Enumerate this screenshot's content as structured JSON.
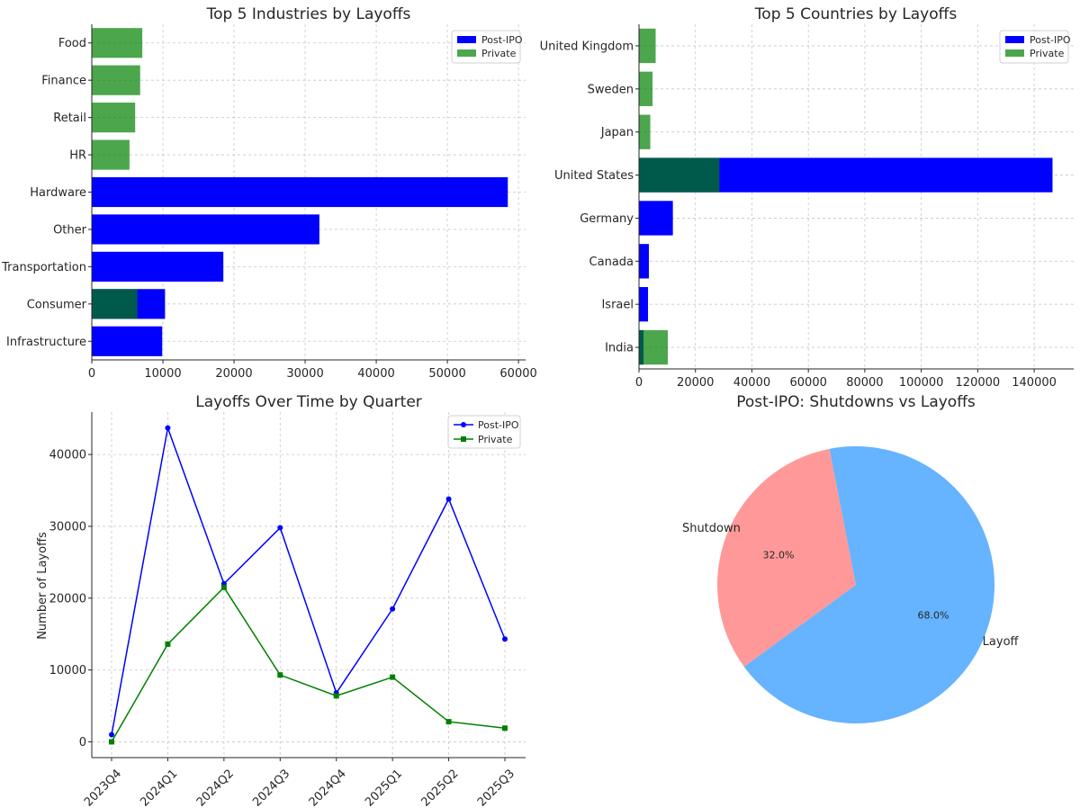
{
  "colors": {
    "post_ipo": "#0000ff",
    "private": "#008000",
    "private_bar_alpha": 0.7,
    "shutdown": "#ff9999",
    "layoff": "#66b3ff"
  },
  "chart_data": [
    {
      "id": "industries",
      "type": "bar",
      "orientation": "horizontal",
      "overlay": true,
      "title": "Top 5 Industries by Layoffs",
      "categories": [
        "Infrastructure",
        "Consumer",
        "Transportation",
        "Other",
        "Hardware",
        "HR",
        "Retail",
        "Finance",
        "Food"
      ],
      "series": [
        {
          "name": "Post-IPO",
          "values": [
            9900,
            10300,
            18500,
            32000,
            58500,
            0,
            0,
            0,
            0
          ]
        },
        {
          "name": "Private",
          "values": [
            0,
            6400,
            0,
            0,
            0,
            5300,
            6100,
            6800,
            7100
          ]
        }
      ],
      "xlim": [
        0,
        61000
      ],
      "xticks": [
        0,
        10000,
        20000,
        30000,
        40000,
        50000,
        60000
      ],
      "legend": "top-right",
      "grid": true
    },
    {
      "id": "countries",
      "type": "bar",
      "orientation": "horizontal",
      "overlay": true,
      "title": "Top 5 Countries by Layoffs",
      "categories": [
        "India",
        "Israel",
        "Canada",
        "Germany",
        "United States",
        "Japan",
        "Sweden",
        "United Kingdom"
      ],
      "series": [
        {
          "name": "Post-IPO",
          "values": [
            1600,
            3200,
            3500,
            12000,
            146500,
            0,
            0,
            0
          ]
        },
        {
          "name": "Private",
          "values": [
            10200,
            0,
            0,
            0,
            28500,
            4000,
            4800,
            5900
          ]
        }
      ],
      "xlim": [
        0,
        154000
      ],
      "xticks": [
        0,
        20000,
        40000,
        60000,
        80000,
        100000,
        120000,
        140000
      ],
      "legend": "top-right",
      "grid": true
    },
    {
      "id": "quarters",
      "type": "line",
      "title": "Layoffs Over Time by Quarter",
      "ylabel": "Number of Layoffs",
      "categories": [
        "2023Q4",
        "2024Q1",
        "2024Q2",
        "2024Q3",
        "2024Q4",
        "2025Q1",
        "2025Q2",
        "2025Q3"
      ],
      "series": [
        {
          "name": "Post-IPO",
          "marker": "circle",
          "values": [
            1000,
            43700,
            22000,
            29800,
            6800,
            18500,
            33800,
            14300
          ]
        },
        {
          "name": "Private",
          "marker": "square",
          "values": [
            0,
            13600,
            21500,
            9300,
            6400,
            9000,
            2800,
            1900
          ]
        }
      ],
      "ylim": [
        -2200,
        45900
      ],
      "yticks": [
        0,
        10000,
        20000,
        30000,
        40000
      ],
      "legend": "top-right",
      "grid": true
    },
    {
      "id": "pie",
      "type": "pie",
      "title": "Post-IPO: Shutdowns vs Layoffs",
      "slices": [
        {
          "label": "Shutdown",
          "value": 32.0,
          "pct_label": "32.0%"
        },
        {
          "label": "Layoff",
          "value": 68.0,
          "pct_label": "68.0%"
        }
      ]
    }
  ]
}
